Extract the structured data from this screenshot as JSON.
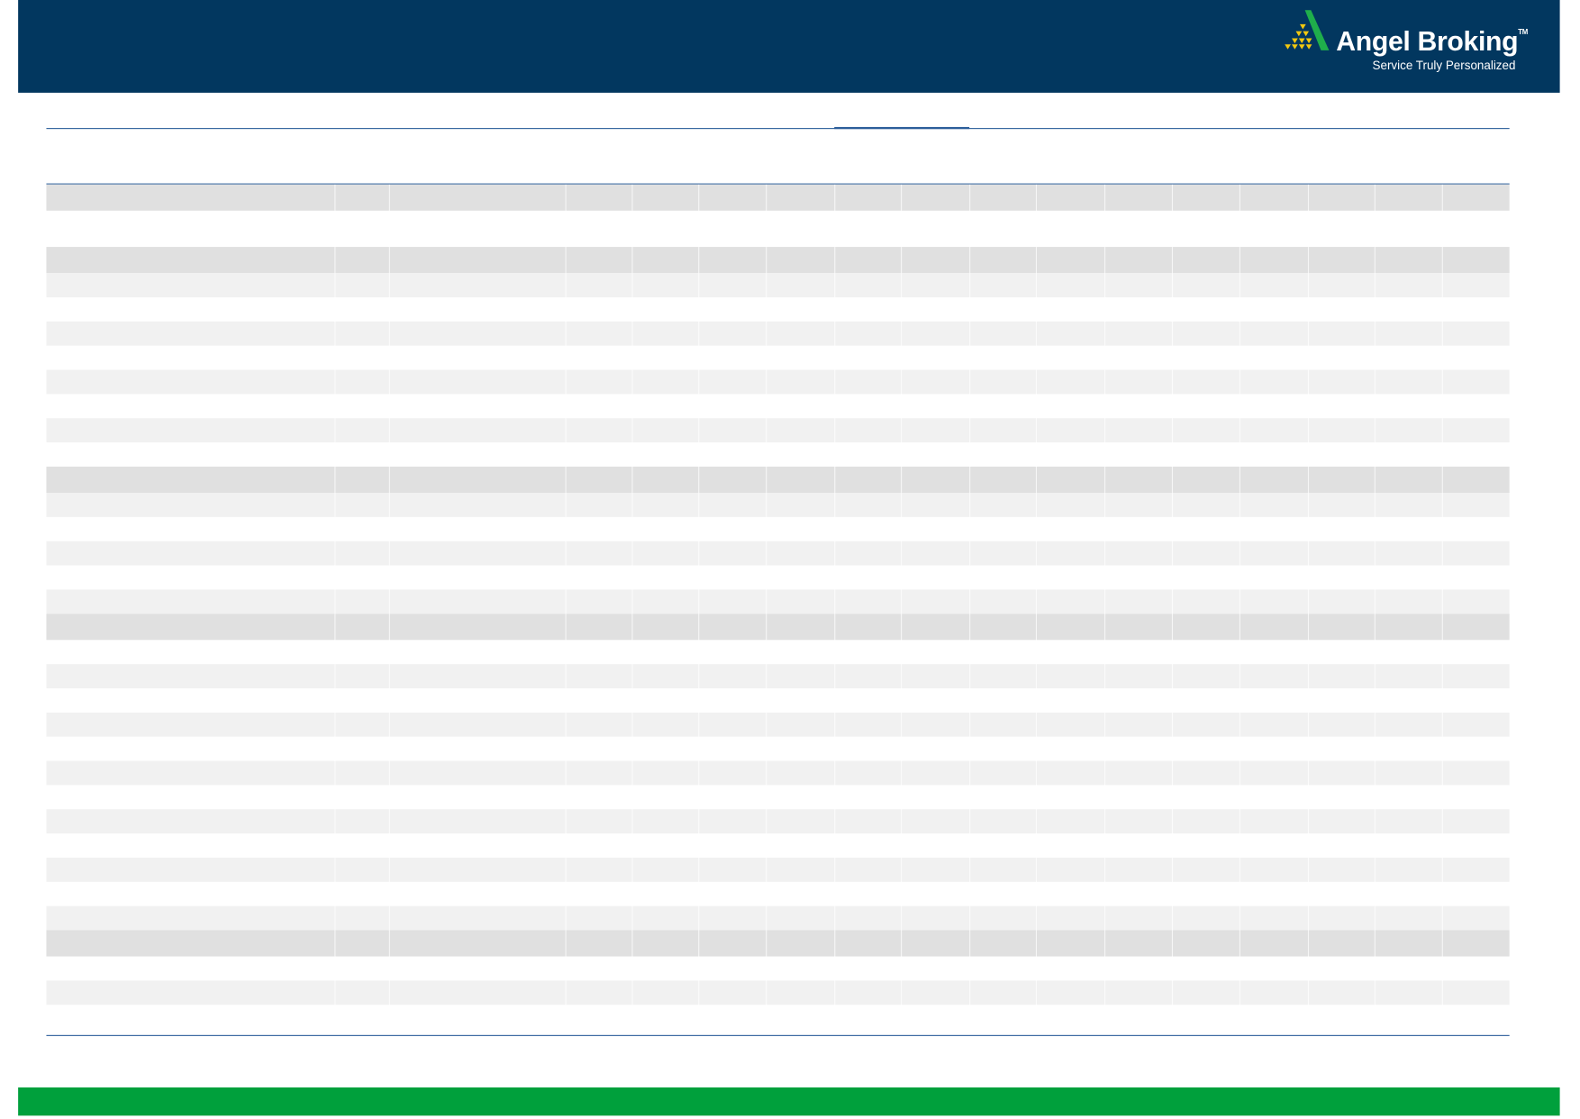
{
  "header": {
    "logo": {
      "brand": "Angel Broking",
      "trademark": "TM",
      "tagline": "Service Truly Personalized",
      "icon": "angel-pyramid-logo-icon"
    }
  },
  "colors": {
    "header_bg": "#02375f",
    "rule": "#2c5e9a",
    "footer_bg": "#00a03c",
    "row_dark": "#e0e0e0",
    "row_light": "#f1f1f1",
    "logo_green": "#1fae4b",
    "logo_gold": "#f2c80f"
  },
  "table": {
    "rows": [
      "dark",
      "white",
      "dark",
      "light",
      "white",
      "light",
      "white",
      "light",
      "white",
      "light",
      "white",
      "dark",
      "light",
      "white",
      "light",
      "white",
      "light",
      "dark",
      "white",
      "light",
      "white",
      "light",
      "white",
      "light",
      "white",
      "light",
      "white",
      "light",
      "white",
      "light",
      "dark",
      "white",
      "light",
      "white"
    ]
  }
}
